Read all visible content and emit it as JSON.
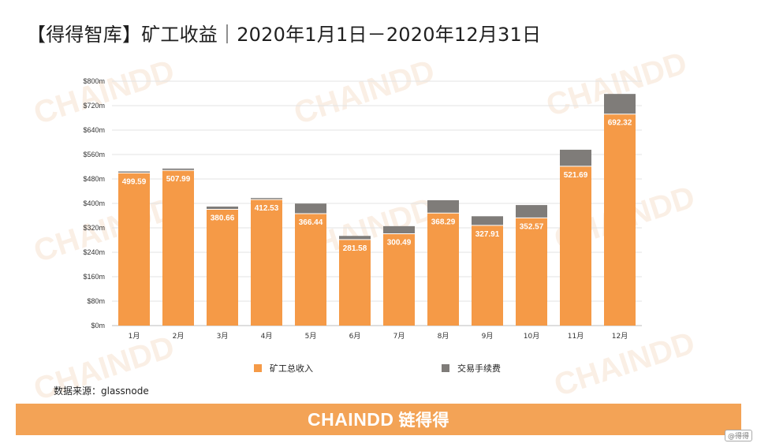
{
  "title": "【得得智库】矿工收益｜2020年1月1日－2020年12月31日",
  "watermark_text": "CHAINDD",
  "colors": {
    "miner_revenue": "#f59a47",
    "tx_fees": "#7f7c79",
    "footer_bg": "#f3a356"
  },
  "chart_data": {
    "type": "bar",
    "stacked": true,
    "categories": [
      "1月",
      "2月",
      "3月",
      "4月",
      "5月",
      "6月",
      "7月",
      "8月",
      "9月",
      "10月",
      "11月",
      "12月"
    ],
    "ytick_labels": [
      "$0m",
      "$80m",
      "$160m",
      "$240m",
      "$320m",
      "$400m",
      "$480m",
      "$560m",
      "$640m",
      "$720m",
      "$800m"
    ],
    "ylim": [
      0,
      800
    ],
    "grid": true,
    "legend_position": "bottom",
    "series": [
      {
        "name": "矿工总收入",
        "values": [
          499.59,
          507.99,
          380.66,
          412.53,
          366.44,
          281.58,
          300.49,
          368.29,
          327.91,
          352.57,
          521.69,
          692.32
        ],
        "labels": [
          "499.59",
          "507.99",
          "380.66",
          "412.53",
          "366.44",
          "281.58",
          "300.49",
          "368.29",
          "327.91",
          "352.57",
          "521.69",
          "692.32"
        ]
      },
      {
        "name": "交易手续费",
        "values": [
          5,
          6,
          9,
          5,
          33,
          12,
          25,
          42,
          30,
          42,
          54,
          66
        ]
      }
    ]
  },
  "legend": [
    {
      "label": "矿工总收入"
    },
    {
      "label": "交易手续费"
    }
  ],
  "source": "数据来源：glassnode",
  "footer": {
    "logo_text": "CHAINDD",
    "logo_cn": "链得得"
  },
  "corner_badge": "@得得"
}
